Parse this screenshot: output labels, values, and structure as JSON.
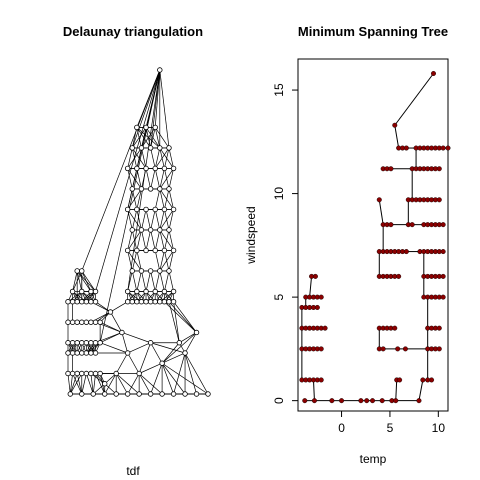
{
  "colors": {
    "background": "#ffffff",
    "edge": "#000000",
    "node_fill_left": "#ffffff",
    "node_fill_right": "#8b0000"
  },
  "chart_data": [
    {
      "type": "network",
      "title": "Delaunay triangulation",
      "xlabel": "tdf",
      "ylabel": "",
      "axes": "none",
      "node_shape": "open-circle",
      "edge_count_approx": "dense mesh",
      "nodes": [
        [
          -4,
          0
        ],
        [
          -3,
          0
        ],
        [
          -2,
          0
        ],
        [
          -1,
          0
        ],
        [
          0,
          0
        ],
        [
          1,
          0
        ],
        [
          2,
          0
        ],
        [
          3,
          0
        ],
        [
          4,
          0
        ],
        [
          5,
          0
        ],
        [
          6,
          0
        ],
        [
          7,
          0
        ],
        [
          8,
          0
        ],
        [
          -4.2,
          1
        ],
        [
          -3.8,
          1
        ],
        [
          -3.4,
          1
        ],
        [
          -3,
          1
        ],
        [
          -2.6,
          1
        ],
        [
          -2.2,
          1
        ],
        [
          -1.8,
          1
        ],
        [
          -1.4,
          1
        ],
        [
          -4.2,
          2
        ],
        [
          -3.8,
          2
        ],
        [
          -3.4,
          2
        ],
        [
          -3,
          2
        ],
        [
          -2.6,
          2
        ],
        [
          -2.2,
          2
        ],
        [
          -1.8,
          2
        ],
        [
          -4.2,
          2.5
        ],
        [
          -3.8,
          2.5
        ],
        [
          -3.4,
          2.5
        ],
        [
          -3,
          2.5
        ],
        [
          -2.6,
          2.5
        ],
        [
          -2.2,
          2.5
        ],
        [
          -1.8,
          2.5
        ],
        [
          -1.4,
          2.5
        ],
        [
          -4.2,
          3.5
        ],
        [
          -3.8,
          3.5
        ],
        [
          -3.4,
          3.5
        ],
        [
          -3,
          3.5
        ],
        [
          -2.6,
          3.5
        ],
        [
          -2.2,
          3.5
        ],
        [
          -1.8,
          3.5
        ],
        [
          -1.4,
          3.5
        ],
        [
          -4.2,
          4.5
        ],
        [
          -3.8,
          4.5
        ],
        [
          -3.4,
          4.5
        ],
        [
          -3,
          4.5
        ],
        [
          -2.6,
          4.5
        ],
        [
          -2.2,
          4.5
        ],
        [
          -1.8,
          4.5
        ],
        [
          -3.8,
          5
        ],
        [
          -3,
          5
        ],
        [
          -2.2,
          5
        ],
        [
          -1.8,
          5
        ],
        [
          -3.4,
          6
        ],
        [
          -3,
          6
        ],
        [
          1,
          4.5
        ],
        [
          1.4,
          4.5
        ],
        [
          1.8,
          4.5
        ],
        [
          2.2,
          4.5
        ],
        [
          2.6,
          4.5
        ],
        [
          3,
          4.5
        ],
        [
          3.4,
          4.5
        ],
        [
          3.8,
          4.5
        ],
        [
          4.2,
          4.5
        ],
        [
          4.6,
          4.5
        ],
        [
          5,
          4.5
        ],
        [
          1,
          5
        ],
        [
          1.8,
          5
        ],
        [
          2.6,
          5
        ],
        [
          3.4,
          5
        ],
        [
          4.2,
          5
        ],
        [
          5,
          5
        ],
        [
          1.4,
          6
        ],
        [
          2.2,
          6
        ],
        [
          3,
          6
        ],
        [
          3.8,
          6
        ],
        [
          4.6,
          6
        ],
        [
          1,
          7
        ],
        [
          1.8,
          7
        ],
        [
          2.6,
          7
        ],
        [
          3.4,
          7
        ],
        [
          4.2,
          7
        ],
        [
          5,
          7
        ],
        [
          1.4,
          8
        ],
        [
          2.2,
          8
        ],
        [
          3,
          8
        ],
        [
          3.8,
          8
        ],
        [
          4.6,
          8
        ],
        [
          1,
          9
        ],
        [
          1.8,
          9
        ],
        [
          2.6,
          9
        ],
        [
          3.4,
          9
        ],
        [
          4.2,
          9
        ],
        [
          5,
          9
        ],
        [
          1.4,
          10
        ],
        [
          2.2,
          10
        ],
        [
          3,
          10
        ],
        [
          3.8,
          10
        ],
        [
          4.6,
          10
        ],
        [
          1,
          11
        ],
        [
          1.8,
          11
        ],
        [
          2.6,
          11
        ],
        [
          3.4,
          11
        ],
        [
          4.2,
          11
        ],
        [
          5,
          11
        ],
        [
          1.4,
          12
        ],
        [
          2.2,
          12
        ],
        [
          3,
          12
        ],
        [
          3.8,
          12
        ],
        [
          4.6,
          12
        ],
        [
          1.8,
          13
        ],
        [
          2.6,
          13
        ],
        [
          3.4,
          13
        ],
        [
          3.8,
          15.8
        ],
        [
          -1,
          0.5
        ],
        [
          0,
          1
        ],
        [
          1,
          2
        ],
        [
          2,
          1
        ],
        [
          3,
          2.5
        ],
        [
          4,
          1.5
        ],
        [
          0.5,
          3
        ],
        [
          -0.5,
          4
        ],
        [
          6,
          2
        ],
        [
          7,
          3
        ],
        [
          5.5,
          2.5
        ]
      ]
    },
    {
      "type": "scatter",
      "title": "Minimum Spanning Tree",
      "xlabel": "temp",
      "ylabel": "windspeed",
      "xlim": [
        -4.5,
        11
      ],
      "ylim": [
        -0.5,
        16.5
      ],
      "xticks": [
        0,
        5,
        10
      ],
      "yticks": [
        0,
        5,
        10,
        15
      ],
      "point_color": "#8b0000",
      "points": [
        [
          -3.8,
          0
        ],
        [
          -2.8,
          0
        ],
        [
          -1,
          0
        ],
        [
          0,
          0
        ],
        [
          2,
          0
        ],
        [
          2.6,
          0
        ],
        [
          3.2,
          0
        ],
        [
          4.2,
          0
        ],
        [
          5.2,
          0
        ],
        [
          5.6,
          0
        ],
        [
          8,
          0
        ],
        [
          8.4,
          1
        ],
        [
          -4.1,
          1
        ],
        [
          -3.7,
          1
        ],
        [
          -3.3,
          1
        ],
        [
          -2.9,
          1
        ],
        [
          -2.5,
          1
        ],
        [
          -2.1,
          1
        ],
        [
          -4.1,
          2.5
        ],
        [
          -3.7,
          2.5
        ],
        [
          -3.3,
          2.5
        ],
        [
          -2.9,
          2.5
        ],
        [
          -2.5,
          2.5
        ],
        [
          -2.1,
          2.5
        ],
        [
          -4.1,
          3.5
        ],
        [
          -3.7,
          3.5
        ],
        [
          -3.3,
          3.5
        ],
        [
          -2.9,
          3.5
        ],
        [
          -2.5,
          3.5
        ],
        [
          -2.1,
          3.5
        ],
        [
          -1.7,
          3.5
        ],
        [
          -4.1,
          4.5
        ],
        [
          -3.7,
          4.5
        ],
        [
          -3.3,
          4.5
        ],
        [
          -2.9,
          4.5
        ],
        [
          -2.5,
          4.5
        ],
        [
          -3.7,
          5
        ],
        [
          -3.3,
          5
        ],
        [
          -2.9,
          5
        ],
        [
          -2.5,
          5
        ],
        [
          -2.1,
          5
        ],
        [
          -3.1,
          6
        ],
        [
          -2.7,
          6
        ],
        [
          3.9,
          2.5
        ],
        [
          4.3,
          2.5
        ],
        [
          5.8,
          2.5
        ],
        [
          6.6,
          2.5
        ],
        [
          3.9,
          3.5
        ],
        [
          4.3,
          3.5
        ],
        [
          4.7,
          3.5
        ],
        [
          5.1,
          3.5
        ],
        [
          5.5,
          3.5
        ],
        [
          3.9,
          6
        ],
        [
          4.3,
          6
        ],
        [
          4.7,
          6
        ],
        [
          5.1,
          6
        ],
        [
          5.5,
          6
        ],
        [
          5.9,
          6
        ],
        [
          3.9,
          7.2
        ],
        [
          4.3,
          7.2
        ],
        [
          4.7,
          7.2
        ],
        [
          5.1,
          7.2
        ],
        [
          5.5,
          7.2
        ],
        [
          5.9,
          7.2
        ],
        [
          6.3,
          7.2
        ],
        [
          6.7,
          7.2
        ],
        [
          4.3,
          8.5
        ],
        [
          4.7,
          8.5
        ],
        [
          5.1,
          8.5
        ],
        [
          3.9,
          9.7
        ],
        [
          4.3,
          11.2
        ],
        [
          4.7,
          11.2
        ],
        [
          5.1,
          11.2
        ],
        [
          5.5,
          13.3
        ],
        [
          5.9,
          12.2
        ],
        [
          6.3,
          12.2
        ],
        [
          6.7,
          12.2
        ],
        [
          5.7,
          1
        ],
        [
          6,
          1
        ],
        [
          6.9,
          8.5
        ],
        [
          7.3,
          8.5
        ],
        [
          6.9,
          9.7
        ],
        [
          7.3,
          9.7
        ],
        [
          7.7,
          9.7
        ],
        [
          8.1,
          9.7
        ],
        [
          8.5,
          9.7
        ],
        [
          8.9,
          9.7
        ],
        [
          9.3,
          9.7
        ],
        [
          9.7,
          9.7
        ],
        [
          10.1,
          9.7
        ],
        [
          7.3,
          11.2
        ],
        [
          7.7,
          11.2
        ],
        [
          8.1,
          11.2
        ],
        [
          8.5,
          11.2
        ],
        [
          8.9,
          11.2
        ],
        [
          9.3,
          11.2
        ],
        [
          9.7,
          11.2
        ],
        [
          10.1,
          11.2
        ],
        [
          7.7,
          12.2
        ],
        [
          8.1,
          12.2
        ],
        [
          8.5,
          12.2
        ],
        [
          8.9,
          12.2
        ],
        [
          9.3,
          12.2
        ],
        [
          9.7,
          12.2
        ],
        [
          10.1,
          12.2
        ],
        [
          10.5,
          12.2
        ],
        [
          11,
          12.2
        ],
        [
          9.5,
          15.8
        ],
        [
          8.5,
          8.5
        ],
        [
          8.9,
          8.5
        ],
        [
          9.3,
          8.5
        ],
        [
          9.7,
          8.5
        ],
        [
          10.1,
          8.5
        ],
        [
          10.5,
          8.5
        ],
        [
          8.1,
          7.2
        ],
        [
          8.5,
          7.2
        ],
        [
          8.9,
          7.2
        ],
        [
          9.3,
          7.2
        ],
        [
          9.7,
          7.2
        ],
        [
          10.1,
          7.2
        ],
        [
          10.5,
          7.2
        ],
        [
          8.5,
          6
        ],
        [
          8.9,
          6
        ],
        [
          9.3,
          6
        ],
        [
          9.7,
          6
        ],
        [
          10.1,
          6
        ],
        [
          10.5,
          6
        ],
        [
          8.5,
          5
        ],
        [
          8.9,
          5
        ],
        [
          9.3,
          5
        ],
        [
          9.7,
          5
        ],
        [
          10.1,
          5
        ],
        [
          10.5,
          5
        ],
        [
          8.9,
          3.5
        ],
        [
          9.3,
          3.5
        ],
        [
          9.7,
          3.5
        ],
        [
          10.1,
          3.5
        ],
        [
          8.9,
          2.5
        ],
        [
          9.3,
          2.5
        ],
        [
          9.7,
          2.5
        ],
        [
          10.1,
          2.5
        ],
        [
          9.3,
          1
        ],
        [
          8.9,
          1
        ]
      ]
    }
  ]
}
